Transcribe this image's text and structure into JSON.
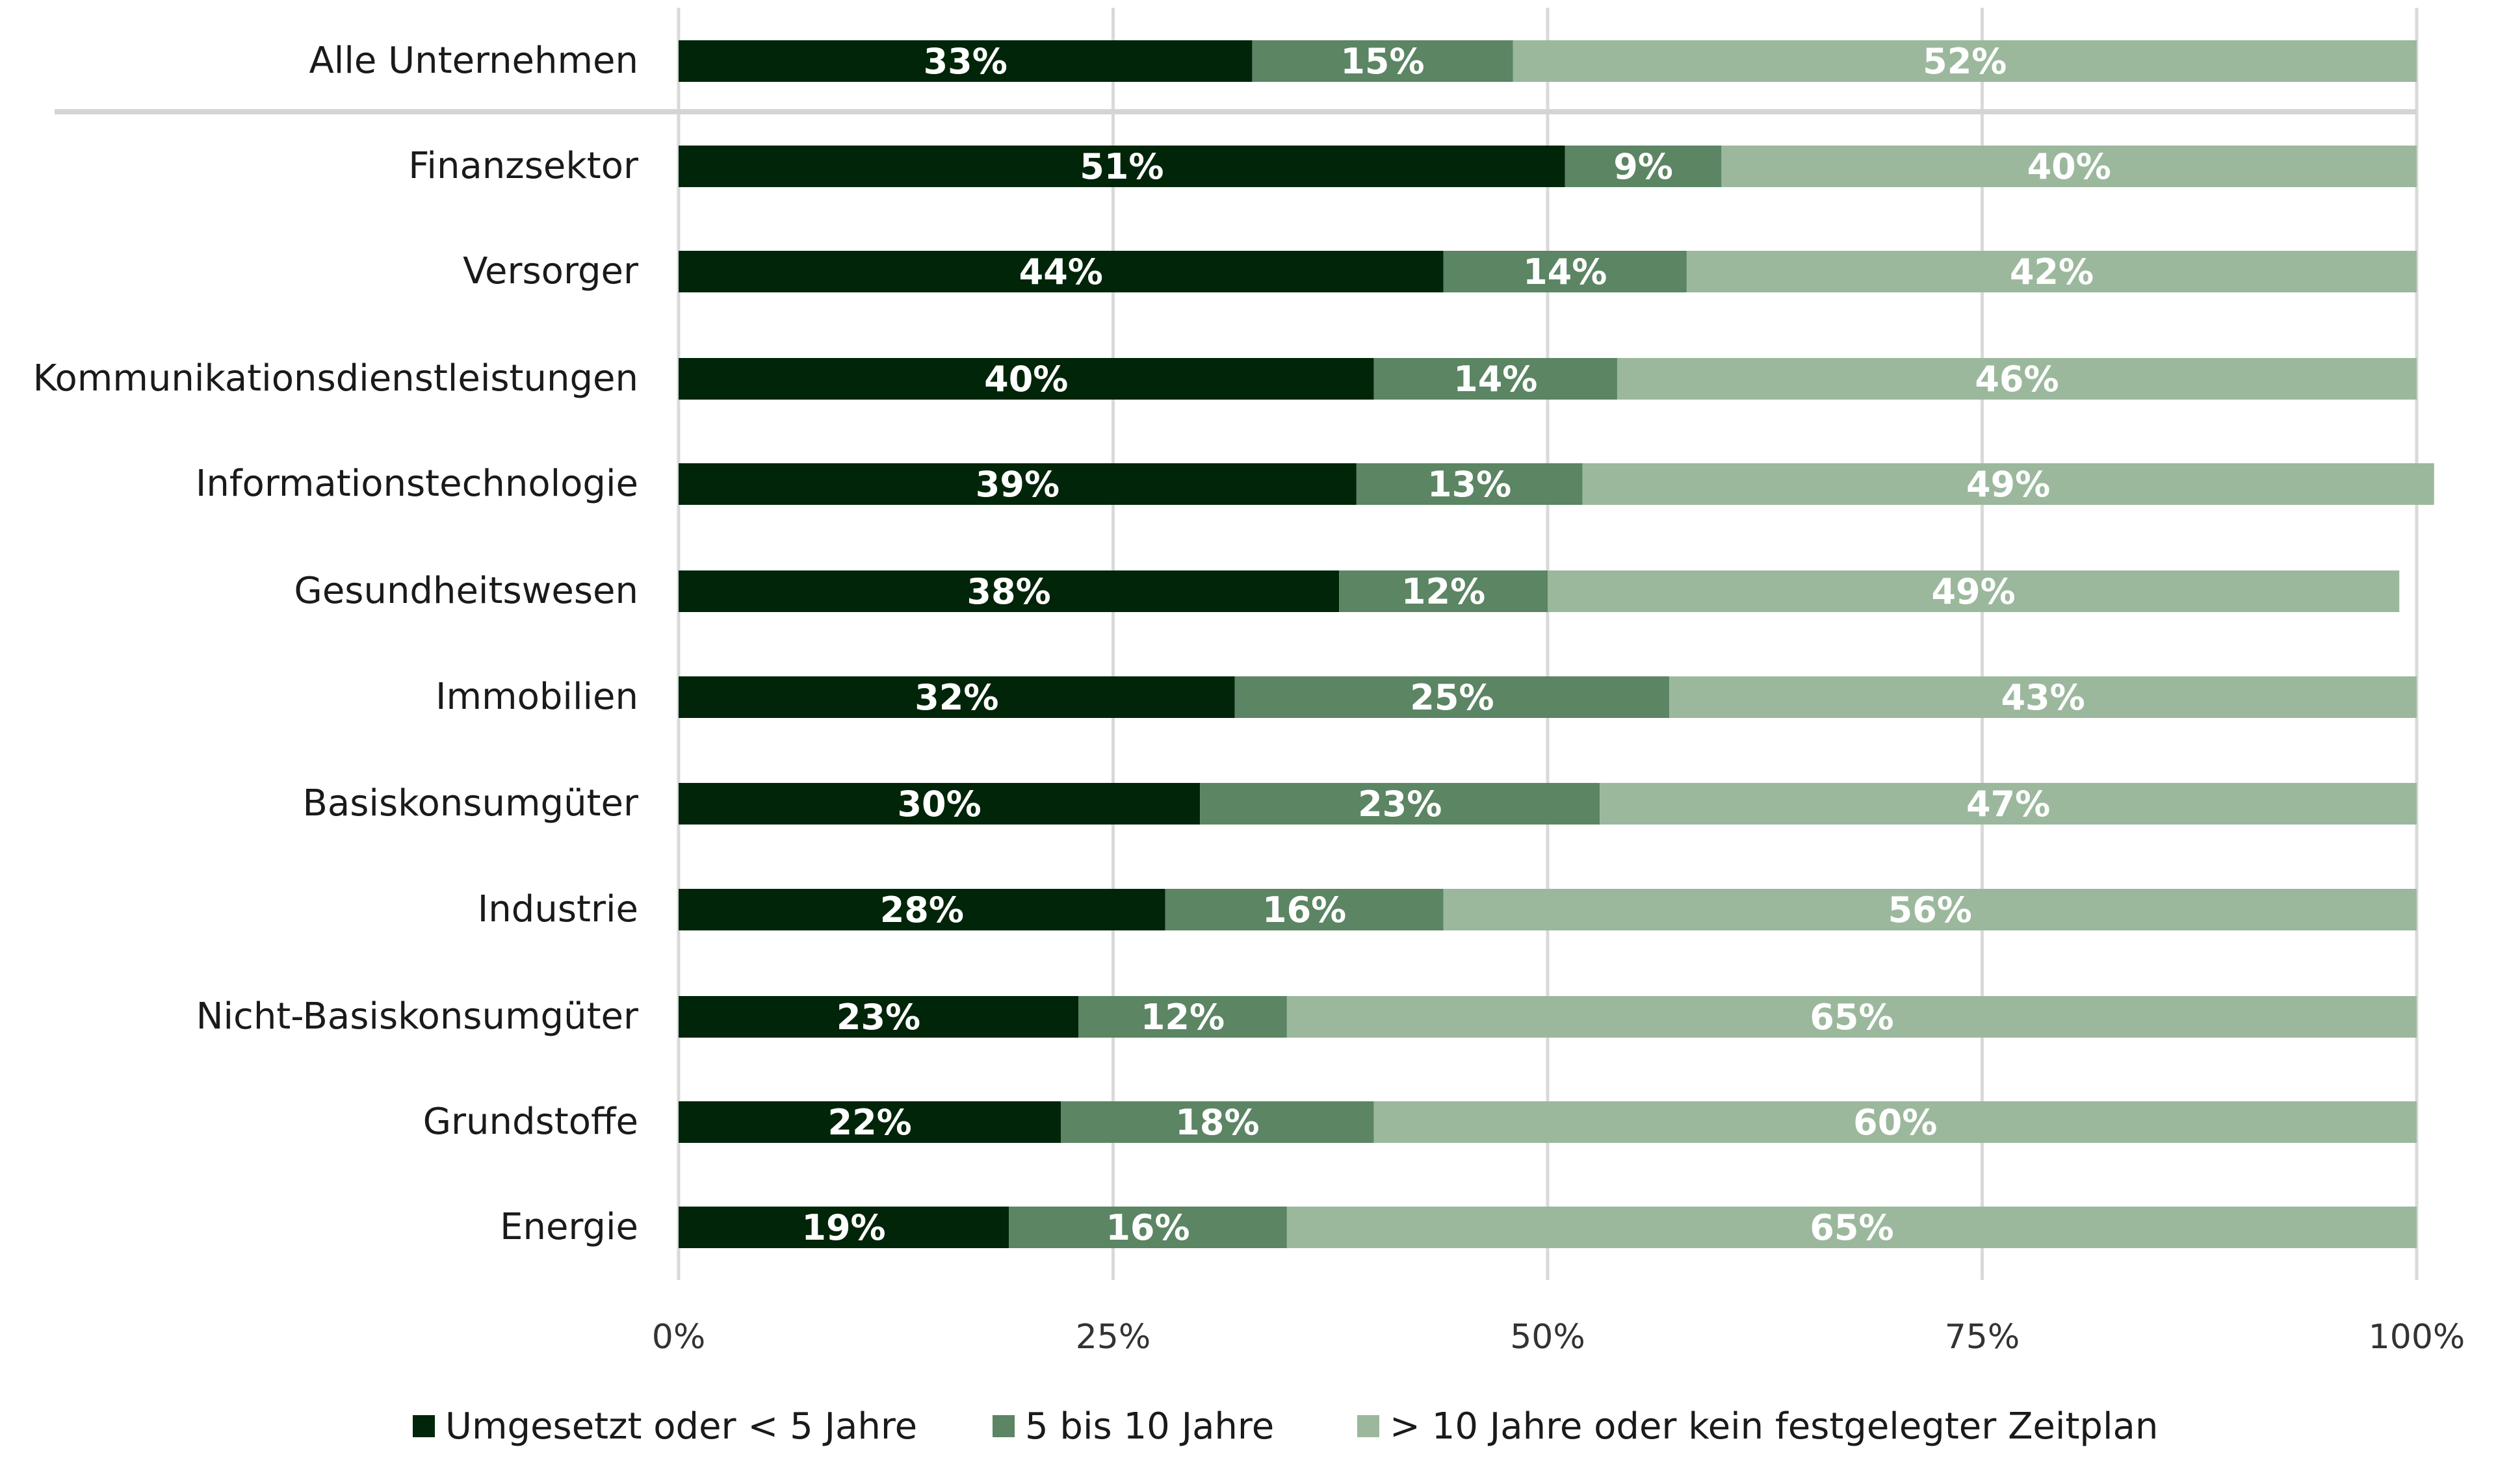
{
  "chart_data": {
    "type": "bar",
    "orientation": "horizontal",
    "stacked": true,
    "title": "",
    "xlabel": "",
    "ylabel": "",
    "xlim": [
      0,
      100
    ],
    "x_ticks": [
      "0%",
      "25%",
      "50%",
      "75%",
      "100%"
    ],
    "x_tick_values": [
      0,
      25,
      50,
      75,
      100
    ],
    "grid": true,
    "legend_position": "bottom",
    "categories": [
      "Alle Unternehmen",
      "Finanzsektor",
      "Versorger",
      "Kommunikationsdienstleistungen",
      "Informationstechnologie",
      "Gesundheitswesen",
      "Immobilien",
      "Basiskonsumgüter",
      "Industrie",
      "Nicht-Basiskonsumgüter",
      "Grundstoffe",
      "Energie"
    ],
    "separator_after_category": "Alle Unternehmen",
    "series": [
      {
        "name": "Umgesetzt oder < 5 Jahre",
        "color": "#002508",
        "values": [
          33,
          51,
          44,
          40,
          39,
          38,
          32,
          30,
          28,
          23,
          22,
          19
        ]
      },
      {
        "name": "5 bis 10 Jahre",
        "color": "#5b8563",
        "values": [
          15,
          9,
          14,
          14,
          13,
          12,
          25,
          23,
          16,
          12,
          18,
          16
        ]
      },
      {
        "name": "> 10 Jahre oder kein festgelegter Zeitplan",
        "color": "#9bb89d",
        "values": [
          52,
          40,
          42,
          46,
          49,
          49,
          43,
          47,
          56,
          65,
          60,
          65
        ]
      }
    ],
    "value_suffix": "%"
  }
}
